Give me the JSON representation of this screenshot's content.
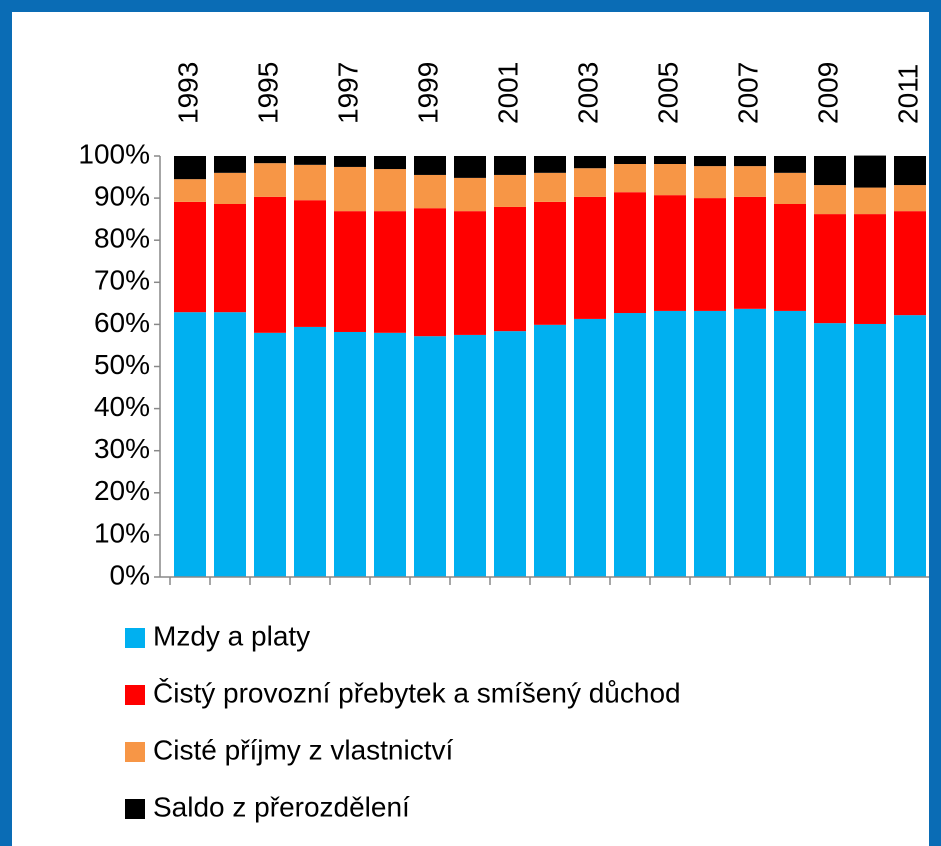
{
  "chart_data": {
    "type": "bar",
    "stacked": true,
    "categories": [
      "1993",
      null,
      "1995",
      null,
      "1997",
      null,
      "1999",
      null,
      "2001",
      null,
      "2003",
      null,
      "2005",
      null,
      "2007",
      null,
      "2009",
      null,
      "2011"
    ],
    "series": [
      {
        "name": "Mzdy a platy",
        "color": "#00b0f0",
        "values": [
          62.9,
          62.9,
          58.0,
          59.4,
          58.2,
          58.0,
          57.2,
          57.5,
          58.4,
          59.9,
          61.3,
          62.7,
          63.2,
          63.2,
          63.7,
          63.2,
          60.3,
          60.1,
          62.2
        ]
      },
      {
        "name": "Čistý provozní přebytek a smíšený důchod",
        "color": "#ff0000",
        "values": [
          26.2,
          25.7,
          32.3,
          30.1,
          28.7,
          28.9,
          30.4,
          29.4,
          29.5,
          29.2,
          29.0,
          28.7,
          27.5,
          26.8,
          26.6,
          25.4,
          25.9,
          26.1,
          24.7
        ]
      },
      {
        "name": "Cisté příjmy z vlastnictví",
        "color": "#f79646",
        "values": [
          5.4,
          7.4,
          8.0,
          8.4,
          10.5,
          10.0,
          7.9,
          7.9,
          7.6,
          6.9,
          6.8,
          6.7,
          7.4,
          7.6,
          7.3,
          7.4,
          6.9,
          6.3,
          6.2
        ]
      },
      {
        "name": "Saldo z přerozdělení",
        "color": "#000000",
        "values": [
          5.5,
          4.0,
          1.7,
          2.1,
          2.6,
          3.1,
          4.5,
          5.2,
          4.5,
          4.0,
          2.9,
          1.9,
          1.9,
          2.4,
          2.4,
          4.0,
          6.9,
          7.6,
          6.9
        ]
      }
    ],
    "ylim": [
      0,
      100
    ],
    "yticks": [
      {
        "value": 0,
        "label": "0%"
      },
      {
        "value": 10,
        "label": "10%"
      },
      {
        "value": 20,
        "label": "20%"
      },
      {
        "value": 30,
        "label": "30%"
      },
      {
        "value": 40,
        "label": "40%"
      },
      {
        "value": 50,
        "label": "50%"
      },
      {
        "value": 60,
        "label": "60%"
      },
      {
        "value": 70,
        "label": "70%"
      },
      {
        "value": 80,
        "label": "80%"
      },
      {
        "value": 90,
        "label": "90%"
      },
      {
        "value": 100,
        "label": "100%"
      }
    ],
    "grid": false,
    "legend": "bottom"
  }
}
